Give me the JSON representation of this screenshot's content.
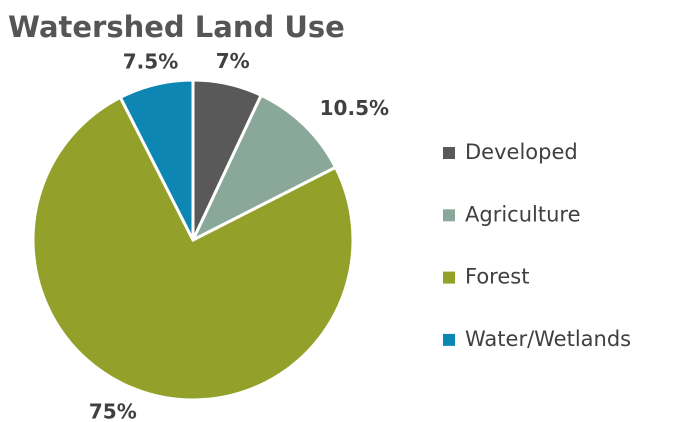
{
  "chart_data": {
    "type": "pie",
    "title": "Watershed Land Use",
    "categories": [
      "Developed",
      "Agriculture",
      "Forest",
      "Water/Wetlands"
    ],
    "values": [
      7,
      10.5,
      75,
      7.5
    ],
    "value_labels": [
      "7%",
      "10.5%",
      "75%",
      "7.5%"
    ],
    "colors": [
      "#595959",
      "#8aa899",
      "#93a12a",
      "#0e86b4"
    ],
    "legend": "right"
  }
}
